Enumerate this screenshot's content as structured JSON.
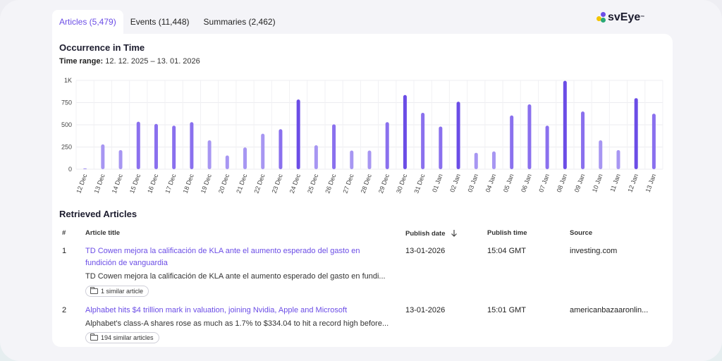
{
  "tabs": [
    {
      "label": "Articles (5,479)",
      "active": true
    },
    {
      "label": "Events (11,448)",
      "active": false
    },
    {
      "label": "Summaries (2,462)",
      "active": false
    }
  ],
  "brand": {
    "name": "svEye",
    "tm": "™",
    "dot_colors": [
      "#f2c400",
      "#6b4de6",
      "#2aa876"
    ]
  },
  "occurrence": {
    "title": "Occurrence in Time",
    "range_label": "Time range:",
    "range_value": "12. 12. 2025 – 13. 01. 2026"
  },
  "chart_data": {
    "type": "bar",
    "categories": [
      "12 Dec",
      "13 Dec",
      "14 Dec",
      "15 Dec",
      "16 Dec",
      "17 Dec",
      "18 Dec",
      "19 Dec",
      "20 Dec",
      "21 Dec",
      "22 Dec",
      "23 Dec",
      "24 Dec",
      "25 Dec",
      "26 Dec",
      "27 Dec",
      "28 Dec",
      "29 Dec",
      "30 Dec",
      "31 Dec",
      "01 Jan",
      "02 Jan",
      "03 Jan",
      "04 Jan",
      "05 Jan",
      "06 Jan",
      "07 Jan",
      "08 Jan",
      "09 Jan",
      "10 Jan",
      "11 Jan",
      "12 Jan",
      "13 Jan"
    ],
    "values": [
      10,
      280,
      215,
      535,
      510,
      490,
      530,
      325,
      155,
      245,
      400,
      450,
      785,
      270,
      505,
      210,
      210,
      530,
      835,
      635,
      480,
      760,
      185,
      200,
      605,
      730,
      490,
      995,
      650,
      325,
      215,
      800,
      625
    ],
    "yticks": [
      "0",
      "250",
      "500",
      "750",
      "1K"
    ],
    "ylim": [
      0,
      1000
    ],
    "grid": true,
    "colors": {
      "light": "#a796f2",
      "mid": "#8a70ee",
      "dark": "#6b4de6"
    }
  },
  "retrieved": {
    "title": "Retrieved Articles",
    "columns": {
      "num": "#",
      "title": "Article title",
      "date": "Publish date",
      "time": "Publish time",
      "source": "Source"
    },
    "sort_icon": "arrow-down-icon",
    "rows": [
      {
        "num": "1",
        "title": "TD Cowen mejora la calificación de KLA ante el aumento esperado del gasto en fundición de vanguardia",
        "snippet": "TD Cowen mejora la calificación de KLA ante el aumento esperado del gasto en fundi...",
        "similar": "1 similar article",
        "date": "13-01-2026",
        "time": "15:04 GMT",
        "source": "investing.com"
      },
      {
        "num": "2",
        "title": "Alphabet hits $4 trillion mark in valuation, joining Nvidia, Apple and Microsoft",
        "snippet": "Alphabet's class-A shares rose as much as 1.7% to $334.04 to hit a record high before...",
        "similar": "194 similar articles",
        "date": "13-01-2026",
        "time": "15:01 GMT",
        "source": "americanbazaaronlin..."
      }
    ]
  }
}
